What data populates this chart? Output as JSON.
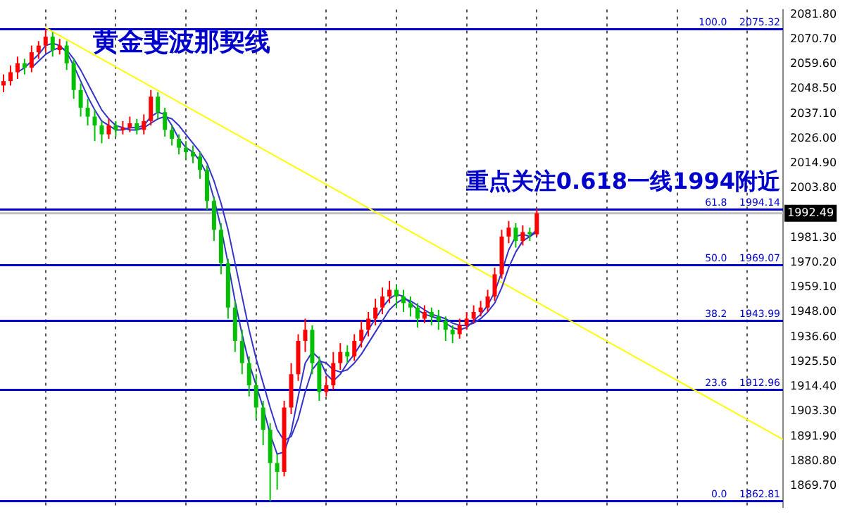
{
  "chart_data": {
    "type": "candlestick",
    "title": "黄金斐波那契线",
    "annotations": [
      "重点关注0.618一线1994附近"
    ],
    "categories": [
      null,
      null,
      null,
      null,
      null,
      null,
      null,
      null,
      null,
      null,
      null,
      null,
      null,
      null,
      null,
      null,
      null,
      null,
      null,
      null,
      null,
      null,
      null,
      null,
      null,
      null,
      null,
      null,
      null,
      null,
      null,
      null,
      null,
      null,
      null,
      null,
      null,
      null,
      null,
      null,
      null,
      null,
      null,
      null,
      null,
      null,
      null,
      null,
      null,
      null,
      null,
      null,
      null,
      null,
      null,
      null,
      null,
      null,
      null,
      null,
      null,
      null,
      null,
      null,
      null,
      null,
      null,
      null,
      null,
      null,
      null,
      null,
      null,
      null,
      null,
      null,
      null
    ],
    "ohlc": [
      [
        2050,
        2055,
        2047,
        2052
      ],
      [
        2052,
        2059,
        2050,
        2056
      ],
      [
        2056,
        2063,
        2053,
        2060
      ],
      [
        2060,
        2062,
        2055,
        2058
      ],
      [
        2058,
        2068,
        2056,
        2065
      ],
      [
        2065,
        2070,
        2062,
        2068
      ],
      [
        2068,
        2075.32,
        2065,
        2072
      ],
      [
        2072,
        2074,
        2063,
        2066
      ],
      [
        2066,
        2071,
        2064,
        2068
      ],
      [
        2068,
        2070,
        2057,
        2060
      ],
      [
        2060,
        2062,
        2044,
        2048
      ],
      [
        2048,
        2051,
        2036,
        2040
      ],
      [
        2040,
        2044,
        2032,
        2036
      ],
      [
        2036,
        2039,
        2025,
        2032
      ],
      [
        2032,
        2034,
        2024,
        2028
      ],
      [
        2028,
        2035,
        2026,
        2032
      ],
      [
        2032,
        2034,
        2027,
        2030
      ],
      [
        2030,
        2034,
        2028,
        2031
      ],
      [
        2031,
        2036,
        2029,
        2033
      ],
      [
        2033,
        2035,
        2028,
        2030
      ],
      [
        2030,
        2037,
        2028,
        2034
      ],
      [
        2034,
        2048,
        2032,
        2045
      ],
      [
        2045,
        2047,
        2035,
        2038
      ],
      [
        2038,
        2040,
        2027,
        2030
      ],
      [
        2030,
        2032,
        2023,
        2026
      ],
      [
        2026,
        2028,
        2019,
        2022
      ],
      [
        2022,
        2025,
        2017,
        2020
      ],
      [
        2020,
        2023,
        2015,
        2018
      ],
      [
        2018,
        2020,
        2008,
        2012
      ],
      [
        2012,
        2014,
        1994,
        1998
      ],
      [
        1998,
        2000,
        1980,
        1985
      ],
      [
        1985,
        1988,
        1965,
        1970
      ],
      [
        1970,
        1972,
        1945,
        1950
      ],
      [
        1950,
        1953,
        1930,
        1935
      ],
      [
        1935,
        1940,
        1920,
        1925
      ],
      [
        1925,
        1928,
        1910,
        1915
      ],
      [
        1915,
        1920,
        1900,
        1905
      ],
      [
        1905,
        1908,
        1888,
        1895
      ],
      [
        1895,
        1898,
        1862.81,
        1880
      ],
      [
        1880,
        1884,
        1868,
        1876
      ],
      [
        1876,
        1908,
        1874,
        1905
      ],
      [
        1905,
        1925,
        1902,
        1920
      ],
      [
        1920,
        1938,
        1917,
        1935
      ],
      [
        1935,
        1945,
        1930,
        1940
      ],
      [
        1940,
        1942,
        1920,
        1925
      ],
      [
        1925,
        1928,
        1908,
        1912
      ],
      [
        1912,
        1919,
        1910,
        1915
      ],
      [
        1915,
        1930,
        1913,
        1925
      ],
      [
        1925,
        1934,
        1922,
        1930
      ],
      [
        1930,
        1933,
        1925,
        1928
      ],
      [
        1928,
        1938,
        1926,
        1935
      ],
      [
        1935,
        1944,
        1932,
        1940
      ],
      [
        1940,
        1948,
        1937,
        1945
      ],
      [
        1945,
        1954,
        1942,
        1950
      ],
      [
        1950,
        1959,
        1947,
        1955
      ],
      [
        1955,
        1962,
        1952,
        1958
      ],
      [
        1958,
        1960,
        1950,
        1955
      ],
      [
        1955,
        1958,
        1948,
        1952
      ],
      [
        1952,
        1955,
        1946,
        1950
      ],
      [
        1950,
        1952,
        1941,
        1945
      ],
      [
        1945,
        1951,
        1943,
        1948
      ],
      [
        1948,
        1950,
        1942,
        1946
      ],
      [
        1946,
        1949,
        1940,
        1944
      ],
      [
        1944,
        1946,
        1935,
        1940
      ],
      [
        1940,
        1942,
        1934,
        1938
      ],
      [
        1938,
        1945,
        1936,
        1942
      ],
      [
        1942,
        1948,
        1940,
        1945
      ],
      [
        1945,
        1951,
        1943,
        1948
      ],
      [
        1948,
        1953,
        1946,
        1950
      ],
      [
        1950,
        1958,
        1948,
        1955
      ],
      [
        1955,
        1968,
        1953,
        1965
      ],
      [
        1965,
        1985,
        1963,
        1982
      ],
      [
        1982,
        1989,
        1979,
        1986
      ],
      [
        1986,
        1988,
        1977,
        1980
      ],
      [
        1980,
        1987,
        1978,
        1984
      ],
      [
        1984,
        1986,
        1980,
        1983
      ],
      [
        1983,
        1994.5,
        1982,
        1992.49
      ]
    ],
    "series": [
      {
        "type": "line",
        "color": "#3333cc",
        "values": [
          null,
          null,
          2056,
          2058,
          2061,
          2064,
          2068,
          2069,
          2068,
          2065,
          2059,
          2052,
          2045,
          2039,
          2034,
          2032,
          2030,
          2030,
          2031,
          2031,
          2032,
          2036,
          2038,
          2037,
          2032,
          2026,
          2022,
          2020,
          2016,
          2010,
          1999,
          1986,
          1970,
          1953,
          1938,
          1925,
          1915,
          1905,
          1893,
          1884,
          1885,
          1894,
          1910,
          1925,
          1930,
          1927,
          1920,
          1917,
          1920,
          1925,
          1929,
          1934,
          1940,
          1945,
          1950,
          1954,
          1956,
          1955,
          1952,
          1949,
          1947,
          1946,
          1945,
          1943,
          1941,
          1940,
          1941,
          1944,
          1947,
          1951,
          1957,
          1966,
          1976,
          1982,
          1983,
          1982,
          1985
        ]
      },
      {
        "type": "line",
        "color": "#3333cc",
        "values": [
          null,
          null,
          null,
          null,
          2058,
          2061,
          2064,
          2066,
          2067,
          2066,
          2062,
          2057,
          2051,
          2045,
          2039,
          2035,
          2032,
          2031,
          2030,
          2030,
          2031,
          2033,
          2035,
          2036,
          2035,
          2032,
          2028,
          2024,
          2020,
          2015,
          2007,
          1997,
          1985,
          1970,
          1955,
          1940,
          1927,
          1916,
          1905,
          1895,
          1890,
          1892,
          1900,
          1912,
          1922,
          1926,
          1925,
          1922,
          1921,
          1922,
          1925,
          1929,
          1934,
          1939,
          1944,
          1949,
          1952,
          1954,
          1953,
          1951,
          1949,
          1947,
          1946,
          1945,
          1943,
          1942,
          1942,
          1943,
          1945,
          1948,
          1952,
          1959,
          1968,
          1975,
          1980,
          1982,
          1984
        ]
      },
      {
        "type": "line",
        "color": "#ffff00",
        "values": [
          null,
          null,
          null,
          null,
          null,
          null,
          2076,
          null,
          null,
          null,
          null,
          null,
          null,
          null,
          null,
          null,
          null,
          null,
          null,
          null,
          null,
          null,
          null,
          null,
          null,
          null,
          null,
          null,
          null,
          null,
          null,
          null,
          null,
          null,
          null,
          null,
          null,
          null,
          null,
          null,
          null,
          null,
          null,
          null,
          null,
          null,
          null,
          null,
          null,
          null,
          null,
          null,
          null,
          null,
          null,
          null,
          null,
          null,
          null,
          null,
          null,
          null,
          null,
          null,
          null,
          null,
          null,
          null,
          null,
          null,
          null,
          null,
          null,
          null,
          null,
          null,
          1952.5
        ]
      }
    ],
    "ylim": [
      1860,
      2084.2
    ],
    "yticks": [
      {
        "value": 2081.8,
        "label": "2081.80"
      },
      {
        "value": 2070.7,
        "label": "2070.70"
      },
      {
        "value": 2059.6,
        "label": "2059.60"
      },
      {
        "value": 2048.5,
        "label": "2048.50"
      },
      {
        "value": 2037.1,
        "label": "2037.10"
      },
      {
        "value": 2026,
        "label": "2026.00"
      },
      {
        "value": 2014.9,
        "label": "2014.90"
      },
      {
        "value": 2003.8,
        "label": "2003.80"
      },
      {
        "value": 1981.3,
        "label": "1981.30"
      },
      {
        "value": 1970.2,
        "label": "1970.20"
      },
      {
        "value": 1959.1,
        "label": "1959.10"
      },
      {
        "value": 1948,
        "label": "1948.00"
      },
      {
        "value": 1936.6,
        "label": "1936.60"
      },
      {
        "value": 1925.5,
        "label": "1925.50"
      },
      {
        "value": 1914.4,
        "label": "1914.40"
      },
      {
        "value": 1903.3,
        "label": "1903.30"
      },
      {
        "value": 1891.9,
        "label": "1891.90"
      },
      {
        "value": 1880.8,
        "label": "1880.80"
      },
      {
        "value": 1869.7,
        "label": "1869.70"
      }
    ],
    "ref_lines": [
      {
        "axis": "y",
        "value": 2075.32,
        "label": "100.0    2075.32",
        "color": "#0000cc"
      },
      {
        "axis": "y",
        "value": 1994.14,
        "label": "61.8    1994.14",
        "color": "#0000cc"
      },
      {
        "axis": "y",
        "value": 1969.07,
        "label": "50.0    1969.07",
        "color": "#0000cc"
      },
      {
        "axis": "y",
        "value": 1943.99,
        "label": "38.2    1943.99",
        "color": "#0000cc"
      },
      {
        "axis": "y",
        "value": 1912.96,
        "label": "23.6    1912.96",
        "color": "#0000cc"
      },
      {
        "axis": "y",
        "value": 1862.81,
        "label": "0.0    1862.81",
        "color": "#0000cc"
      },
      {
        "axis": "y",
        "value": 1992.49,
        "label": "1992.49",
        "color": "#c0c0c0"
      }
    ],
    "grid": "x",
    "tick_labels": "y",
    "marker": "none",
    "line_style": "solid"
  }
}
